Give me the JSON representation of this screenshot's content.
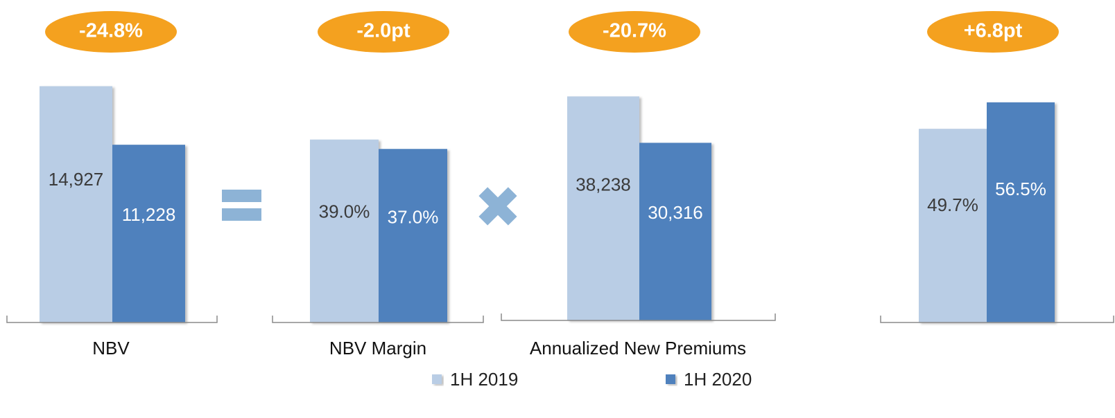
{
  "chart_data": [
    {
      "type": "bar",
      "categories": [
        "NBV"
      ],
      "annotation": "-24.8%",
      "ylim": [
        0,
        16000
      ],
      "series": [
        {
          "name": "1H 2019",
          "color": "#b9cde5",
          "values": [
            14927
          ],
          "value_labels": [
            "14,927"
          ]
        },
        {
          "name": "1H 2020",
          "color": "#4f81bd",
          "values": [
            11228
          ],
          "value_labels": [
            "11,228"
          ]
        }
      ]
    },
    {
      "type": "bar",
      "categories": [
        "NBV Margin"
      ],
      "annotation": "-2.0pt",
      "ylim": [
        0,
        54
      ],
      "series": [
        {
          "name": "1H 2019",
          "color": "#b9cde5",
          "values": [
            39.0
          ],
          "value_labels": [
            "39.0%"
          ]
        },
        {
          "name": "1H 2020",
          "color": "#4f81bd",
          "values": [
            37.0
          ],
          "value_labels": [
            "37.0%"
          ]
        }
      ]
    },
    {
      "type": "bar",
      "categories": [
        "Annualized New Premiums"
      ],
      "annotation": "-20.7%",
      "ylim": [
        0,
        43000
      ],
      "series": [
        {
          "name": "1H 2019",
          "color": "#b9cde5",
          "values": [
            38238
          ],
          "value_labels": [
            "38,238"
          ]
        },
        {
          "name": "1H 2020",
          "color": "#4f81bd",
          "values": [
            30316
          ],
          "value_labels": [
            "30,316"
          ]
        }
      ]
    },
    {
      "type": "bar",
      "categories": [
        null
      ],
      "annotation": "+6.8pt",
      "ylim": [
        0,
        65
      ],
      "series": [
        {
          "name": "1H 2019",
          "color": "#b9cde5",
          "values": [
            49.7
          ],
          "value_labels": [
            "49.7%"
          ]
        },
        {
          "name": "1H 2020",
          "color": "#4f81bd",
          "values": [
            56.5
          ],
          "value_labels": [
            "56.5%"
          ]
        }
      ]
    }
  ]
}
